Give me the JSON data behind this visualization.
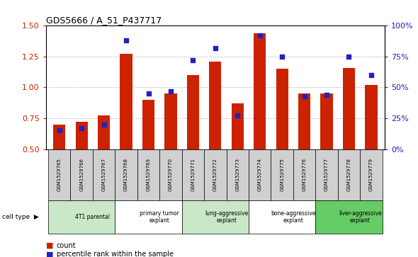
{
  "title": "GDS5666 / A_51_P437717",
  "samples": [
    "GSM1529765",
    "GSM1529766",
    "GSM1529767",
    "GSM1529768",
    "GSM1529769",
    "GSM1529770",
    "GSM1529771",
    "GSM1529772",
    "GSM1529773",
    "GSM1529774",
    "GSM1529775",
    "GSM1529776",
    "GSM1529777",
    "GSM1529778",
    "GSM1529779"
  ],
  "counts": [
    0.7,
    0.72,
    0.77,
    1.27,
    0.9,
    0.95,
    1.1,
    1.21,
    0.87,
    1.44,
    1.15,
    0.95,
    0.95,
    1.16,
    1.02
  ],
  "percentiles": [
    15,
    17,
    20,
    88,
    45,
    47,
    72,
    82,
    27,
    92,
    75,
    43,
    44,
    75,
    60
  ],
  "cell_types": [
    {
      "label": "4T1 parental",
      "start": 0,
      "end": 3,
      "color": "#c8e8c8"
    },
    {
      "label": "primary tumor\nexplant",
      "start": 3,
      "end": 6,
      "color": "#ffffff"
    },
    {
      "label": "lung-aggressive\nexplant",
      "start": 6,
      "end": 9,
      "color": "#c8e8c8"
    },
    {
      "label": "bone-aggressive\nexplant",
      "start": 9,
      "end": 12,
      "color": "#ffffff"
    },
    {
      "label": "liver-aggressive\nexplant",
      "start": 12,
      "end": 15,
      "color": "#66cc66"
    }
  ],
  "ylim_left": [
    0.5,
    1.5
  ],
  "ylim_right": [
    0,
    100
  ],
  "yticks_left": [
    0.5,
    0.75,
    1.0,
    1.25,
    1.5
  ],
  "yticks_right": [
    0,
    25,
    50,
    75,
    100
  ],
  "ytick_labels_right": [
    "0%",
    "25%",
    "50%",
    "75%",
    "100%"
  ],
  "grid_vals": [
    0.75,
    1.0,
    1.25
  ],
  "bar_color": "#cc2200",
  "dot_color": "#2222bb",
  "grid_color": "#aaaaaa",
  "sample_bg_color": "#d0d0d0",
  "legend_bar_color": "#cc2200",
  "legend_dot_color": "#2222bb"
}
